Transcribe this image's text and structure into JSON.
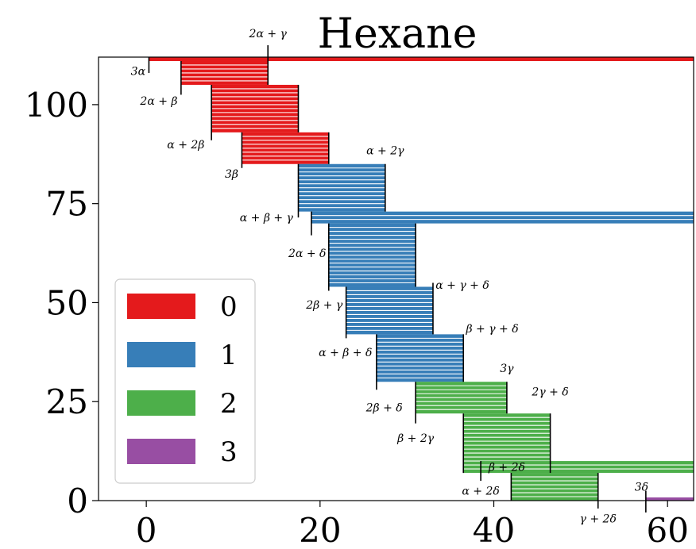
{
  "chart_data": {
    "type": "bar",
    "title": "Hexane",
    "xlabel": "",
    "ylabel": "",
    "xlim": [
      -5.5,
      63
    ],
    "ylim": [
      0,
      112
    ],
    "xticks": [
      0,
      20,
      40,
      60
    ],
    "yticks": [
      0,
      25,
      50,
      75,
      100
    ],
    "grid": false,
    "legend": {
      "placement": "lower-left",
      "entries": [
        {
          "label": "0",
          "color": "#e41a1c"
        },
        {
          "label": "1",
          "color": "#377eb8"
        },
        {
          "label": "2",
          "color": "#4daf4a"
        },
        {
          "label": "3",
          "color": "#984ea3"
        }
      ]
    },
    "segments": [
      {
        "group": 0,
        "x0": 0.3,
        "x1": 63,
        "y0": 111,
        "y1": 112
      },
      {
        "group": 0,
        "x0": 4,
        "x1": 14,
        "y0": 105,
        "y1": 111
      },
      {
        "group": 0,
        "x0": 7.5,
        "x1": 17.5,
        "y0": 93,
        "y1": 105
      },
      {
        "group": 0,
        "x0": 11,
        "x1": 21,
        "y0": 85,
        "y1": 93
      },
      {
        "group": 1,
        "x0": 17.5,
        "x1": 27.5,
        "y0": 73,
        "y1": 85
      },
      {
        "group": 1,
        "x0": 19,
        "x1": 63,
        "y0": 70,
        "y1": 73
      },
      {
        "group": 1,
        "x0": 21,
        "x1": 31,
        "y0": 54,
        "y1": 70
      },
      {
        "group": 1,
        "x0": 23,
        "x1": 33,
        "y0": 42,
        "y1": 54
      },
      {
        "group": 1,
        "x0": 26.5,
        "x1": 36.5,
        "y0": 30,
        "y1": 42
      },
      {
        "group": 2,
        "x0": 31,
        "x1": 41.5,
        "y0": 22,
        "y1": 30
      },
      {
        "group": 2,
        "x0": 36.5,
        "x1": 46.5,
        "y0": 7,
        "y1": 22
      },
      {
        "group": 2,
        "x0": 38.5,
        "x1": 63,
        "y0": 7,
        "y1": 10
      },
      {
        "group": 2,
        "x0": 42,
        "x1": 52,
        "y0": 0,
        "y1": 7
      },
      {
        "group": 3,
        "x0": 57.5,
        "x1": 63,
        "y0": 0,
        "y1": 0.8
      }
    ],
    "annotations": [
      {
        "text": "2α + γ",
        "x": 14,
        "y": 118,
        "anchor": "middle"
      },
      {
        "text": "3α",
        "x": -0.1,
        "y": 108.5,
        "anchor": "end"
      },
      {
        "text": "2α + β",
        "x": 3.6,
        "y": 101,
        "anchor": "end"
      },
      {
        "text": "α + 2β",
        "x": 6.7,
        "y": 90,
        "anchor": "end"
      },
      {
        "text": "3β",
        "x": 10.6,
        "y": 82.5,
        "anchor": "end"
      },
      {
        "text": "α + 2γ",
        "x": 27.5,
        "y": 88.5,
        "anchor": "middle"
      },
      {
        "text": "α + β + γ",
        "x": 16.9,
        "y": 71.5,
        "anchor": "end"
      },
      {
        "text": "2α + δ",
        "x": 20.7,
        "y": 62.5,
        "anchor": "end"
      },
      {
        "text": "α + γ + δ",
        "x": 33.3,
        "y": 54.5,
        "anchor": "start"
      },
      {
        "text": "2β + γ",
        "x": 22.6,
        "y": 49.5,
        "anchor": "end"
      },
      {
        "text": "β + γ + δ",
        "x": 36.8,
        "y": 43.5,
        "anchor": "start"
      },
      {
        "text": "α + β + δ",
        "x": 26,
        "y": 37.5,
        "anchor": "end"
      },
      {
        "text": "3γ",
        "x": 41.5,
        "y": 33.5,
        "anchor": "middle"
      },
      {
        "text": "2γ + δ",
        "x": 46.5,
        "y": 27.5,
        "anchor": "middle"
      },
      {
        "text": "2β + δ",
        "x": 29.5,
        "y": 23.5,
        "anchor": "end"
      },
      {
        "text": "β + 2γ",
        "x": 31,
        "y": 15.8,
        "anchor": "middle"
      },
      {
        "text": "β + 2δ",
        "x": 41.5,
        "y": 8.5,
        "anchor": "middle"
      },
      {
        "text": "α + 2δ",
        "x": 38.5,
        "y": 2.5,
        "anchor": "middle"
      },
      {
        "text": "3δ",
        "x": 57,
        "y": 3.5,
        "anchor": "middle"
      },
      {
        "text": "γ + 2δ",
        "x": 52,
        "y": -4.5,
        "anchor": "middle"
      }
    ],
    "markers": [
      {
        "x": 0.3,
        "y0": 108,
        "y1": 112
      },
      {
        "x": 4,
        "y0": 102.5,
        "y1": 111
      },
      {
        "x": 7.5,
        "y0": 91,
        "y1": 105
      },
      {
        "x": 11,
        "y0": 84,
        "y1": 93
      },
      {
        "x": 14,
        "y0": 105,
        "y1": 115
      },
      {
        "x": 17.5,
        "y0": 93,
        "y1": 105
      },
      {
        "x": 21,
        "y0": 85,
        "y1": 93
      },
      {
        "x": 17.5,
        "y0": 71.5,
        "y1": 85
      },
      {
        "x": 27.5,
        "y0": 73,
        "y1": 85
      },
      {
        "x": 19,
        "y0": 67,
        "y1": 73
      },
      {
        "x": 21,
        "y0": 53,
        "y1": 70
      },
      {
        "x": 31,
        "y0": 54,
        "y1": 70
      },
      {
        "x": 33,
        "y0": 42,
        "y1": 55
      },
      {
        "x": 23,
        "y0": 41,
        "y1": 54
      },
      {
        "x": 26.5,
        "y0": 28,
        "y1": 42
      },
      {
        "x": 36.5,
        "y0": 30,
        "y1": 42
      },
      {
        "x": 31,
        "y0": 19.5,
        "y1": 30
      },
      {
        "x": 41.5,
        "y0": 22,
        "y1": 30
      },
      {
        "x": 36.5,
        "y0": 7,
        "y1": 22
      },
      {
        "x": 46.5,
        "y0": 7,
        "y1": 22
      },
      {
        "x": 38.5,
        "y0": 5,
        "y1": 10
      },
      {
        "x": 42,
        "y0": 0,
        "y1": 7
      },
      {
        "x": 52,
        "y0": -2,
        "y1": 7
      },
      {
        "x": 57.5,
        "y0": -3,
        "y1": 2.5
      }
    ]
  }
}
